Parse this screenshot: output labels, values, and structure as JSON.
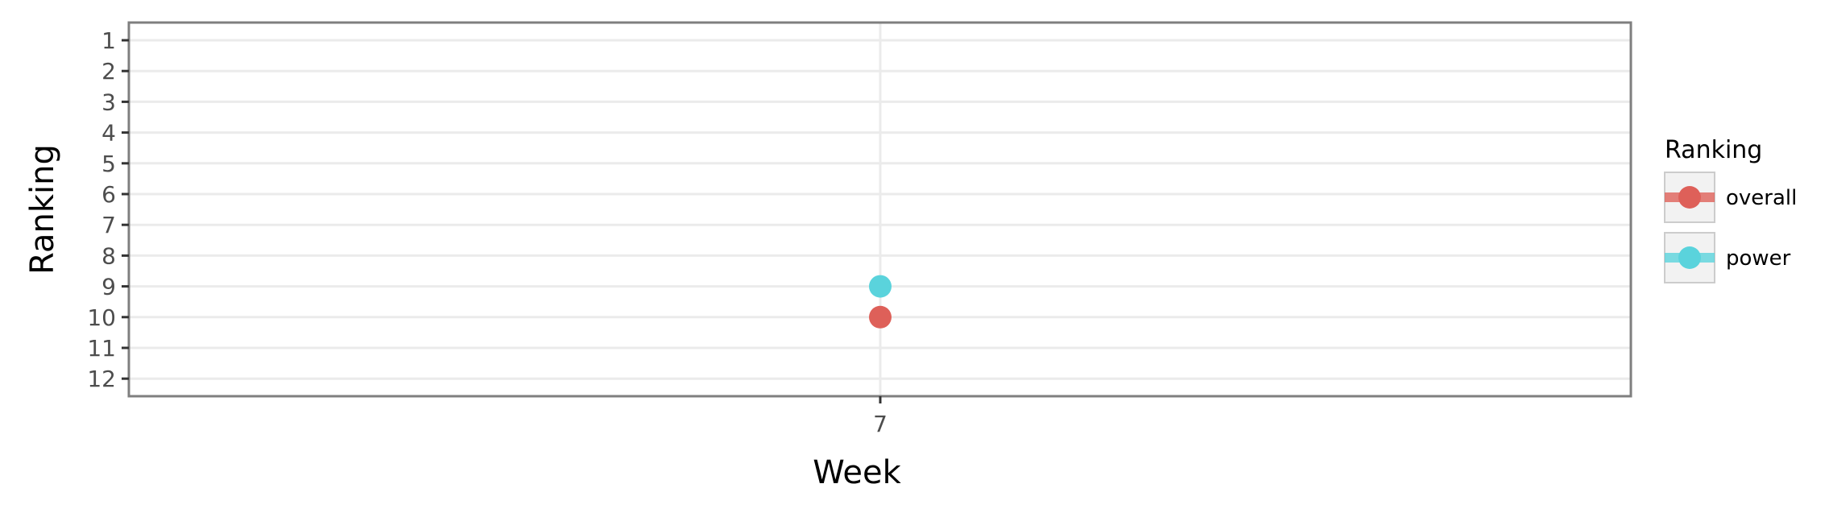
{
  "chart_data": {
    "type": "scatter",
    "title": "",
    "xlabel": "Week",
    "ylabel": "Ranking",
    "x_categories": [
      "7"
    ],
    "y_ticks": [
      "1",
      "2",
      "3",
      "4",
      "5",
      "6",
      "7",
      "8",
      "9",
      "10",
      "11",
      "12"
    ],
    "y_reversed": true,
    "ylim": [
      1,
      12
    ],
    "grid": true,
    "legend": {
      "title": "Ranking",
      "placement": "right"
    },
    "series": [
      {
        "name": "overall",
        "color": "#de6059",
        "points": [
          {
            "x": "7",
            "y": 10
          }
        ]
      },
      {
        "name": "power",
        "color": "#5ad3dc",
        "points": [
          {
            "x": "7",
            "y": 9
          }
        ]
      }
    ]
  }
}
